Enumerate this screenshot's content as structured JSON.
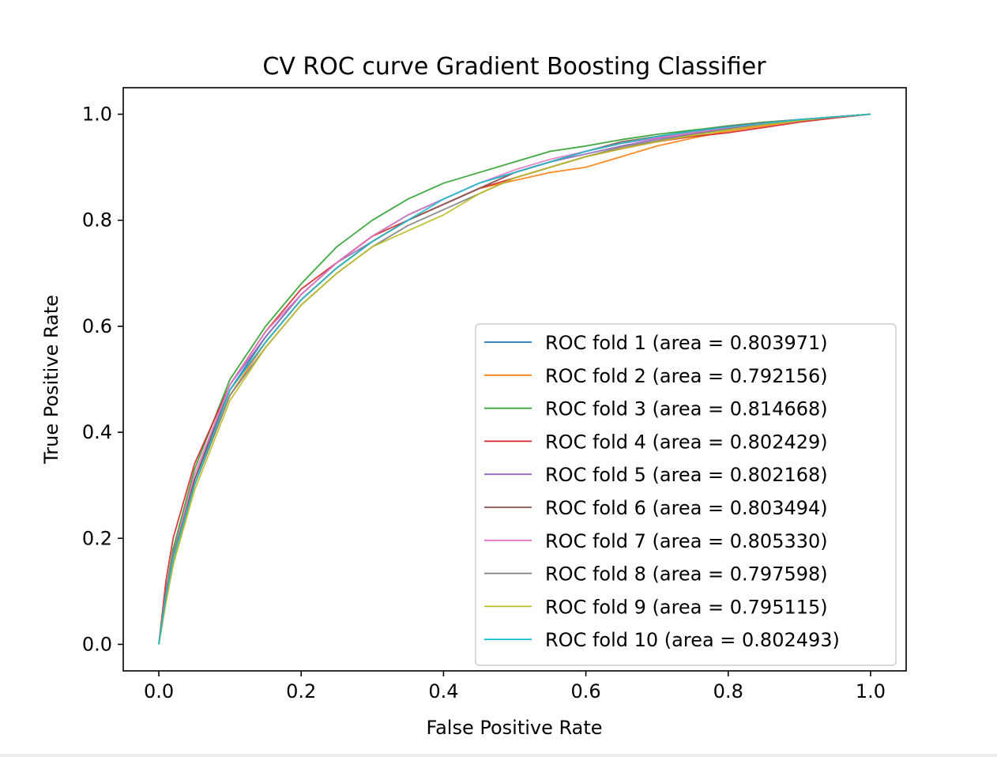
{
  "chart_data": {
    "type": "line",
    "title": "CV ROC curve Gradient Boosting Classifier",
    "xlabel": "False Positive Rate",
    "ylabel": "True Positive Rate",
    "xlim": [
      -0.05,
      1.05
    ],
    "ylim": [
      -0.05,
      1.05
    ],
    "xticks": [
      0.0,
      0.2,
      0.4,
      0.6,
      0.8,
      1.0
    ],
    "yticks": [
      0.0,
      0.2,
      0.4,
      0.6,
      0.8,
      1.0
    ],
    "xtick_labels": [
      "0.0",
      "0.2",
      "0.4",
      "0.6",
      "0.8",
      "1.0"
    ],
    "ytick_labels": [
      "0.0",
      "0.2",
      "0.4",
      "0.6",
      "0.8",
      "1.0"
    ],
    "grid": false,
    "legend_position": "lower-right",
    "series": [
      {
        "name": "ROC fold 1 (area = 0.803971)",
        "color": "#1f77b4",
        "x": [
          0.0,
          0.01,
          0.02,
          0.05,
          0.1,
          0.15,
          0.2,
          0.25,
          0.3,
          0.35,
          0.4,
          0.45,
          0.5,
          0.55,
          0.6,
          0.65,
          0.7,
          0.75,
          0.8,
          0.85,
          0.9,
          0.95,
          1.0
        ],
        "y": [
          0.0,
          0.1,
          0.17,
          0.31,
          0.48,
          0.58,
          0.66,
          0.72,
          0.77,
          0.81,
          0.84,
          0.87,
          0.89,
          0.91,
          0.93,
          0.945,
          0.955,
          0.965,
          0.975,
          0.983,
          0.99,
          0.995,
          1.0
        ]
      },
      {
        "name": "ROC fold 2 (area = 0.792156)",
        "color": "#ff7f0e",
        "x": [
          0.0,
          0.01,
          0.02,
          0.05,
          0.1,
          0.15,
          0.2,
          0.25,
          0.3,
          0.35,
          0.4,
          0.45,
          0.5,
          0.55,
          0.6,
          0.65,
          0.7,
          0.75,
          0.8,
          0.85,
          0.9,
          0.95,
          1.0
        ],
        "y": [
          0.0,
          0.08,
          0.15,
          0.3,
          0.47,
          0.57,
          0.65,
          0.71,
          0.76,
          0.8,
          0.83,
          0.86,
          0.875,
          0.89,
          0.9,
          0.92,
          0.94,
          0.955,
          0.968,
          0.978,
          0.988,
          0.995,
          1.0
        ]
      },
      {
        "name": "ROC fold 3 (area = 0.814668)",
        "color": "#2ca02c",
        "x": [
          0.0,
          0.01,
          0.02,
          0.05,
          0.1,
          0.15,
          0.2,
          0.25,
          0.3,
          0.35,
          0.4,
          0.45,
          0.5,
          0.55,
          0.6,
          0.65,
          0.7,
          0.75,
          0.8,
          0.85,
          0.9,
          0.95,
          1.0
        ],
        "y": [
          0.0,
          0.1,
          0.18,
          0.33,
          0.5,
          0.6,
          0.68,
          0.75,
          0.8,
          0.84,
          0.87,
          0.89,
          0.91,
          0.93,
          0.94,
          0.952,
          0.962,
          0.97,
          0.978,
          0.985,
          0.99,
          0.995,
          1.0
        ]
      },
      {
        "name": "ROC fold 4 (area = 0.802429)",
        "color": "#d62728",
        "x": [
          0.0,
          0.01,
          0.02,
          0.05,
          0.1,
          0.15,
          0.2,
          0.25,
          0.3,
          0.35,
          0.4,
          0.45,
          0.5,
          0.55,
          0.6,
          0.65,
          0.7,
          0.75,
          0.8,
          0.85,
          0.9,
          0.95,
          1.0
        ],
        "y": [
          0.0,
          0.12,
          0.2,
          0.34,
          0.49,
          0.59,
          0.67,
          0.72,
          0.77,
          0.8,
          0.83,
          0.86,
          0.88,
          0.9,
          0.92,
          0.935,
          0.948,
          0.958,
          0.965,
          0.975,
          0.985,
          0.993,
          1.0
        ]
      },
      {
        "name": "ROC fold 5 (area = 0.802168)",
        "color": "#9467bd",
        "x": [
          0.0,
          0.01,
          0.02,
          0.05,
          0.1,
          0.15,
          0.2,
          0.25,
          0.3,
          0.35,
          0.4,
          0.45,
          0.5,
          0.55,
          0.6,
          0.65,
          0.7,
          0.75,
          0.8,
          0.85,
          0.9,
          0.95,
          1.0
        ],
        "y": [
          0.0,
          0.1,
          0.17,
          0.31,
          0.49,
          0.58,
          0.66,
          0.72,
          0.76,
          0.8,
          0.83,
          0.86,
          0.89,
          0.91,
          0.925,
          0.94,
          0.953,
          0.963,
          0.973,
          0.981,
          0.988,
          0.995,
          1.0
        ]
      },
      {
        "name": "ROC fold 6 (area = 0.803494)",
        "color": "#8c564b",
        "x": [
          0.0,
          0.01,
          0.02,
          0.05,
          0.1,
          0.15,
          0.2,
          0.25,
          0.3,
          0.35,
          0.4,
          0.45,
          0.5,
          0.55,
          0.6,
          0.65,
          0.7,
          0.75,
          0.8,
          0.85,
          0.9,
          0.95,
          1.0
        ],
        "y": [
          0.0,
          0.1,
          0.17,
          0.31,
          0.48,
          0.57,
          0.65,
          0.71,
          0.76,
          0.8,
          0.83,
          0.86,
          0.89,
          0.91,
          0.93,
          0.948,
          0.958,
          0.968,
          0.977,
          0.984,
          0.99,
          0.995,
          1.0
        ]
      },
      {
        "name": "ROC fold 7 (area = 0.805330)",
        "color": "#e377c2",
        "x": [
          0.0,
          0.01,
          0.02,
          0.05,
          0.1,
          0.15,
          0.2,
          0.25,
          0.3,
          0.35,
          0.4,
          0.45,
          0.5,
          0.55,
          0.6,
          0.65,
          0.7,
          0.75,
          0.8,
          0.85,
          0.9,
          0.95,
          1.0
        ],
        "y": [
          0.0,
          0.1,
          0.17,
          0.32,
          0.49,
          0.59,
          0.66,
          0.72,
          0.77,
          0.81,
          0.84,
          0.87,
          0.895,
          0.915,
          0.93,
          0.945,
          0.955,
          0.965,
          0.975,
          0.983,
          0.99,
          0.995,
          1.0
        ]
      },
      {
        "name": "ROC fold 8 (area = 0.797598)",
        "color": "#7f7f7f",
        "x": [
          0.0,
          0.01,
          0.02,
          0.05,
          0.1,
          0.15,
          0.2,
          0.25,
          0.3,
          0.35,
          0.4,
          0.45,
          0.5,
          0.55,
          0.6,
          0.65,
          0.7,
          0.75,
          0.8,
          0.85,
          0.9,
          0.95,
          1.0
        ],
        "y": [
          0.0,
          0.1,
          0.17,
          0.3,
          0.47,
          0.56,
          0.64,
          0.7,
          0.75,
          0.79,
          0.82,
          0.85,
          0.88,
          0.9,
          0.92,
          0.938,
          0.95,
          0.962,
          0.972,
          0.98,
          0.988,
          0.995,
          1.0
        ]
      },
      {
        "name": "ROC fold 9 (area = 0.795115)",
        "color": "#bcbd22",
        "x": [
          0.0,
          0.01,
          0.02,
          0.05,
          0.1,
          0.15,
          0.2,
          0.25,
          0.3,
          0.35,
          0.4,
          0.45,
          0.5,
          0.55,
          0.6,
          0.65,
          0.7,
          0.75,
          0.8,
          0.85,
          0.9,
          0.95,
          1.0
        ],
        "y": [
          0.0,
          0.08,
          0.15,
          0.29,
          0.46,
          0.56,
          0.64,
          0.7,
          0.75,
          0.78,
          0.81,
          0.85,
          0.88,
          0.9,
          0.92,
          0.935,
          0.948,
          0.96,
          0.97,
          0.98,
          0.988,
          0.995,
          1.0
        ]
      },
      {
        "name": "ROC fold 10 (area = 0.802493)",
        "color": "#17becf",
        "x": [
          0.0,
          0.01,
          0.02,
          0.05,
          0.1,
          0.15,
          0.2,
          0.25,
          0.3,
          0.35,
          0.4,
          0.45,
          0.5,
          0.55,
          0.6,
          0.65,
          0.7,
          0.75,
          0.8,
          0.85,
          0.9,
          0.95,
          1.0
        ],
        "y": [
          0.0,
          0.09,
          0.16,
          0.3,
          0.48,
          0.57,
          0.65,
          0.71,
          0.76,
          0.8,
          0.84,
          0.87,
          0.89,
          0.91,
          0.93,
          0.945,
          0.958,
          0.968,
          0.976,
          0.983,
          0.99,
          0.995,
          1.0
        ]
      }
    ]
  }
}
